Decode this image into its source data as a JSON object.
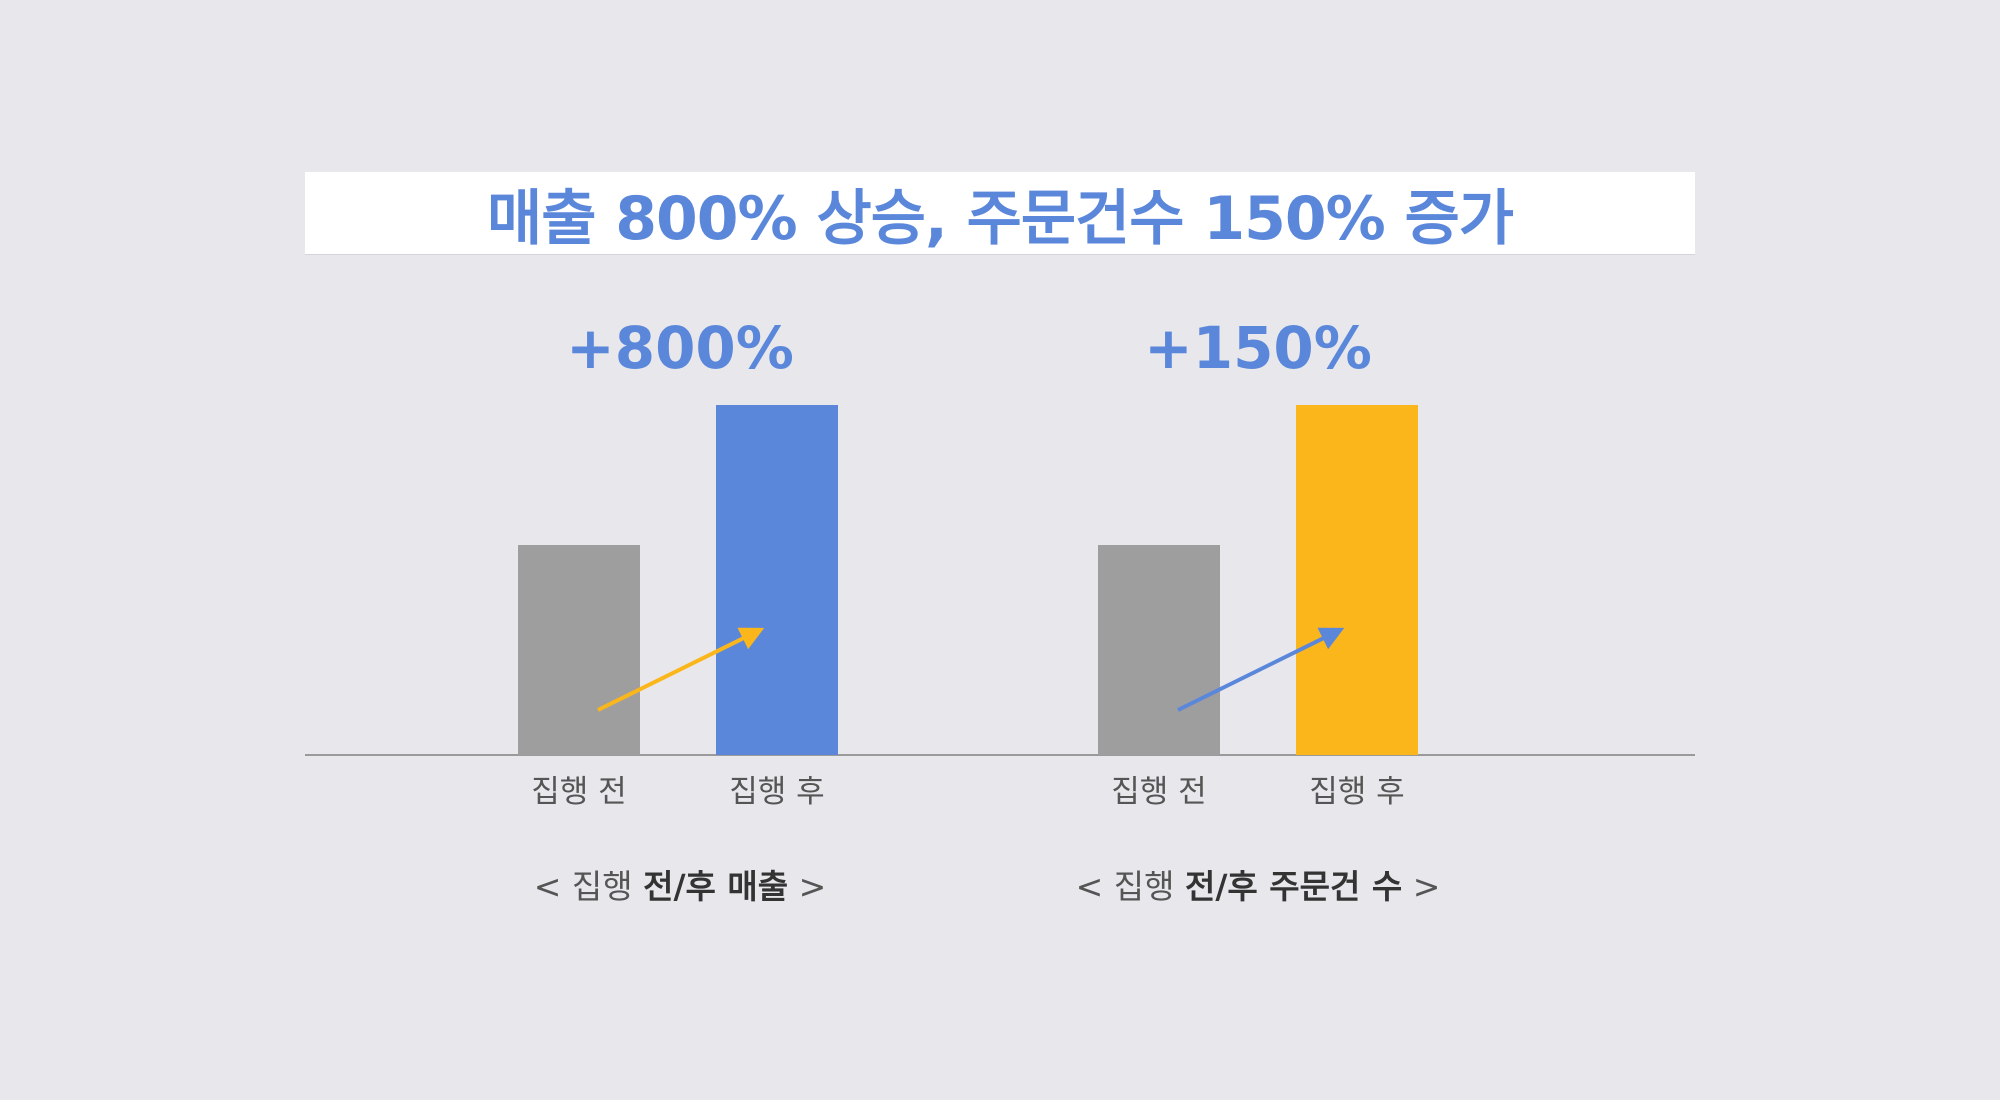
{
  "headline": {
    "text": "매출 800% 상승, 주문건수 150% 증가",
    "color": "#5b87db"
  },
  "chart_data": [
    {
      "type": "bar",
      "categories": [
        "집행 전",
        "집행 후"
      ],
      "values": [
        60,
        100
      ],
      "change_label": "+800%",
      "caption": {
        "open": "< ",
        "normal": "집행 ",
        "bold": "전/후 매출",
        "close": " >"
      },
      "colors": [
        "#9e9e9e",
        "#5b87db"
      ],
      "label_color": "#5b87db",
      "arrow_color": "#fbb61b"
    },
    {
      "type": "bar",
      "categories": [
        "집행 전",
        "집행 후"
      ],
      "values": [
        60,
        100
      ],
      "change_label": "+150%",
      "caption": {
        "open": "< ",
        "normal": "집행 ",
        "bold": "전/후 주문건 수",
        "close": " >"
      },
      "colors": [
        "#9e9e9e",
        "#fbb61b"
      ],
      "label_color": "#5b87db",
      "arrow_color": "#5b87db"
    }
  ],
  "axis_color": "#9a9a9a"
}
